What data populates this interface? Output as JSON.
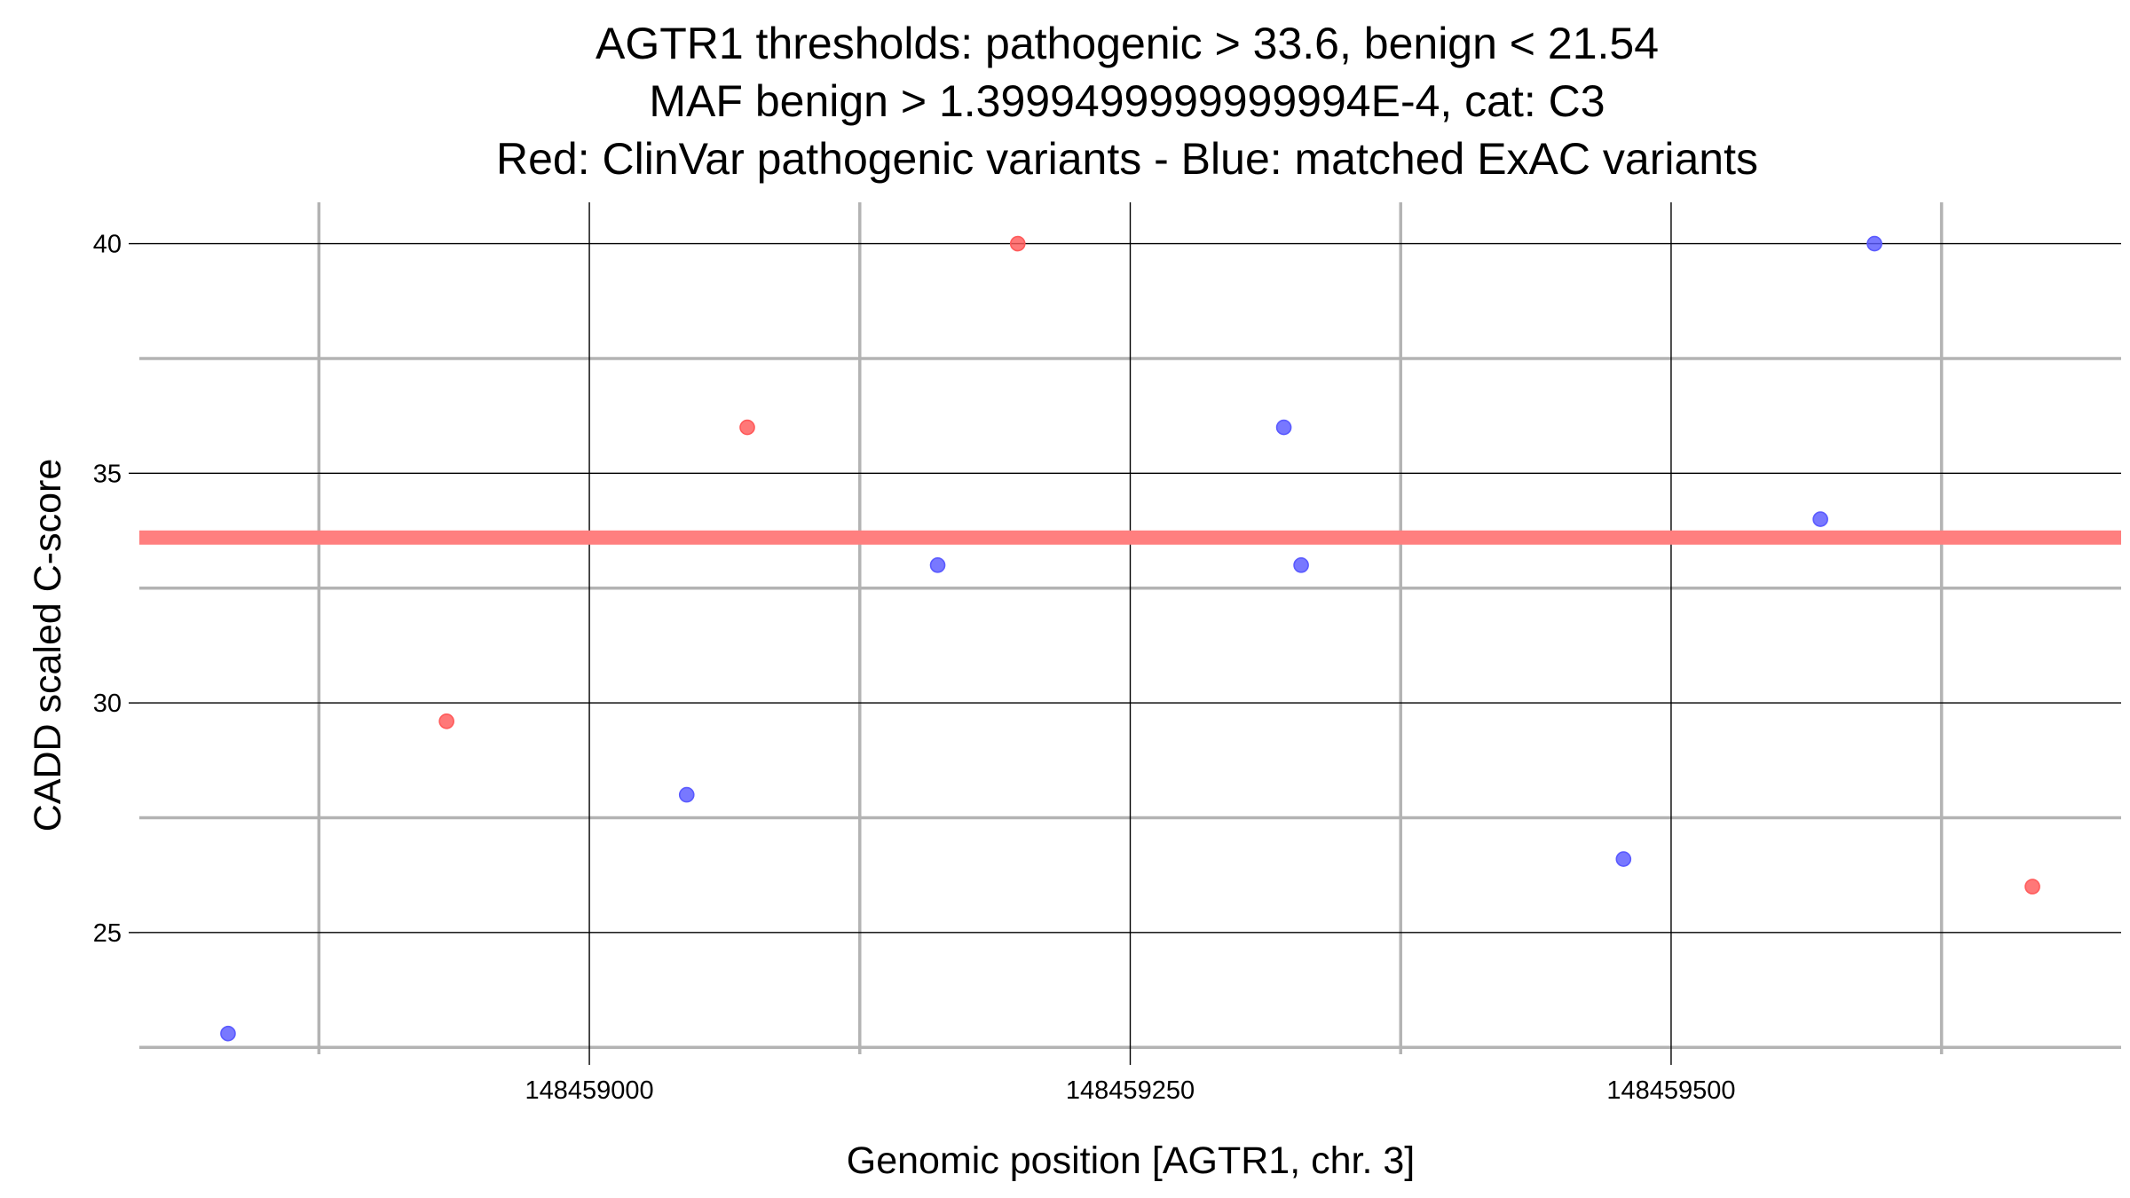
{
  "chart_data": {
    "type": "scatter",
    "title_lines": [
      "AGTR1 thresholds: pathogenic > 33.6, benign < 21.54",
      "MAF benign > 1.3999499999999994E-4, cat: C3",
      "Red: ClinVar pathogenic variants - Blue: matched ExAC variants"
    ],
    "xlabel": "Genomic position [AGTR1, chr. 3]",
    "ylabel": "CADD scaled C-score",
    "xlim": [
      148458792,
      148459708
    ],
    "ylim": [
      22.35,
      40.9
    ],
    "x_ticks": [
      148459000,
      148459250,
      148459500
    ],
    "x_minor_grid": [
      148458875,
      148459125,
      148459375,
      148459625
    ],
    "y_ticks": [
      25,
      30,
      35,
      40
    ],
    "y_minor_grid": [
      22.5,
      27.5,
      32.5,
      37.5
    ],
    "threshold_line": {
      "y": 33.6,
      "label": "pathogenic threshold",
      "color": "#ff7f7f"
    },
    "series": [
      {
        "name": "ClinVar pathogenic variants",
        "color": "#ff5a5a",
        "points": [
          {
            "x": 148458934,
            "y": 29.6
          },
          {
            "x": 148459073,
            "y": 36.0
          },
          {
            "x": 148459198,
            "y": 40.0
          },
          {
            "x": 148459667,
            "y": 26.0
          }
        ]
      },
      {
        "name": "matched ExAC variants",
        "color": "#5a5aff",
        "points": [
          {
            "x": 148458833,
            "y": 22.8
          },
          {
            "x": 148459045,
            "y": 28.0
          },
          {
            "x": 148459161,
            "y": 33.0
          },
          {
            "x": 148459321,
            "y": 36.0
          },
          {
            "x": 148459329,
            "y": 33.0
          },
          {
            "x": 148459478,
            "y": 26.6
          },
          {
            "x": 148459569,
            "y": 34.0
          },
          {
            "x": 148459594,
            "y": 40.0
          }
        ]
      }
    ]
  }
}
